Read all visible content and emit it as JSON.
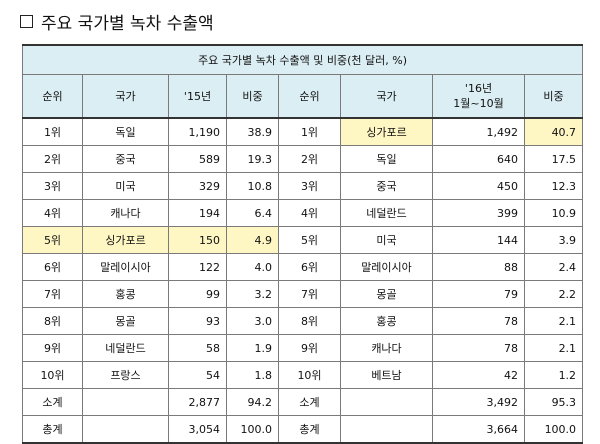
{
  "title": "주요 국가별 녹차 수출액",
  "table": {
    "caption": "주요 국가별 녹차 수출액 및 비중(천 달러, %)",
    "headers": {
      "rank": "순위",
      "country": "국가",
      "y15": "'15년",
      "share": "비중",
      "y16_line1": "'16년",
      "y16_line2": "1월~10월"
    },
    "rows": [
      {
        "rank15": "1위",
        "country15": "독일",
        "value15": "1,190",
        "share15": "38.9",
        "rank16": "1위",
        "country16": "싱가포르",
        "value16": "1,492",
        "share16": "40.7"
      },
      {
        "rank15": "2위",
        "country15": "중국",
        "value15": "589",
        "share15": "19.3",
        "rank16": "2위",
        "country16": "독일",
        "value16": "640",
        "share16": "17.5"
      },
      {
        "rank15": "3위",
        "country15": "미국",
        "value15": "329",
        "share15": "10.8",
        "rank16": "3위",
        "country16": "중국",
        "value16": "450",
        "share16": "12.3"
      },
      {
        "rank15": "4위",
        "country15": "캐나다",
        "value15": "194",
        "share15": "6.4",
        "rank16": "4위",
        "country16": "네덜란드",
        "value16": "399",
        "share16": "10.9"
      },
      {
        "rank15": "5위",
        "country15": "싱가포르",
        "value15": "150",
        "share15": "4.9",
        "rank16": "5위",
        "country16": "미국",
        "value16": "144",
        "share16": "3.9"
      },
      {
        "rank15": "6위",
        "country15": "말레이시아",
        "value15": "122",
        "share15": "4.0",
        "rank16": "6위",
        "country16": "말레이시아",
        "value16": "88",
        "share16": "2.4"
      },
      {
        "rank15": "7위",
        "country15": "홍콩",
        "value15": "99",
        "share15": "3.2",
        "rank16": "7위",
        "country16": "몽골",
        "value16": "79",
        "share16": "2.2"
      },
      {
        "rank15": "8위",
        "country15": "몽골",
        "value15": "93",
        "share15": "3.0",
        "rank16": "8위",
        "country16": "홍콩",
        "value16": "78",
        "share16": "2.1"
      },
      {
        "rank15": "9위",
        "country15": "네덜란드",
        "value15": "58",
        "share15": "1.9",
        "rank16": "9위",
        "country16": "캐나다",
        "value16": "78",
        "share16": "2.1"
      },
      {
        "rank15": "10위",
        "country15": "프랑스",
        "value15": "54",
        "share15": "1.8",
        "rank16": "10위",
        "country16": "베트남",
        "value16": "42",
        "share16": "1.2"
      }
    ],
    "subtotal": {
      "label": "소계",
      "value15": "2,877",
      "share15": "94.2",
      "label16": "소계",
      "value16": "3,492",
      "share16": "95.3"
    },
    "total": {
      "label": "총계",
      "value15": "3,054",
      "share15": "100.0",
      "label16": "총계",
      "value16": "3,664",
      "share16": "100.0"
    },
    "highlight_color": "#fef7c4",
    "header_color": "#dbeef4"
  }
}
